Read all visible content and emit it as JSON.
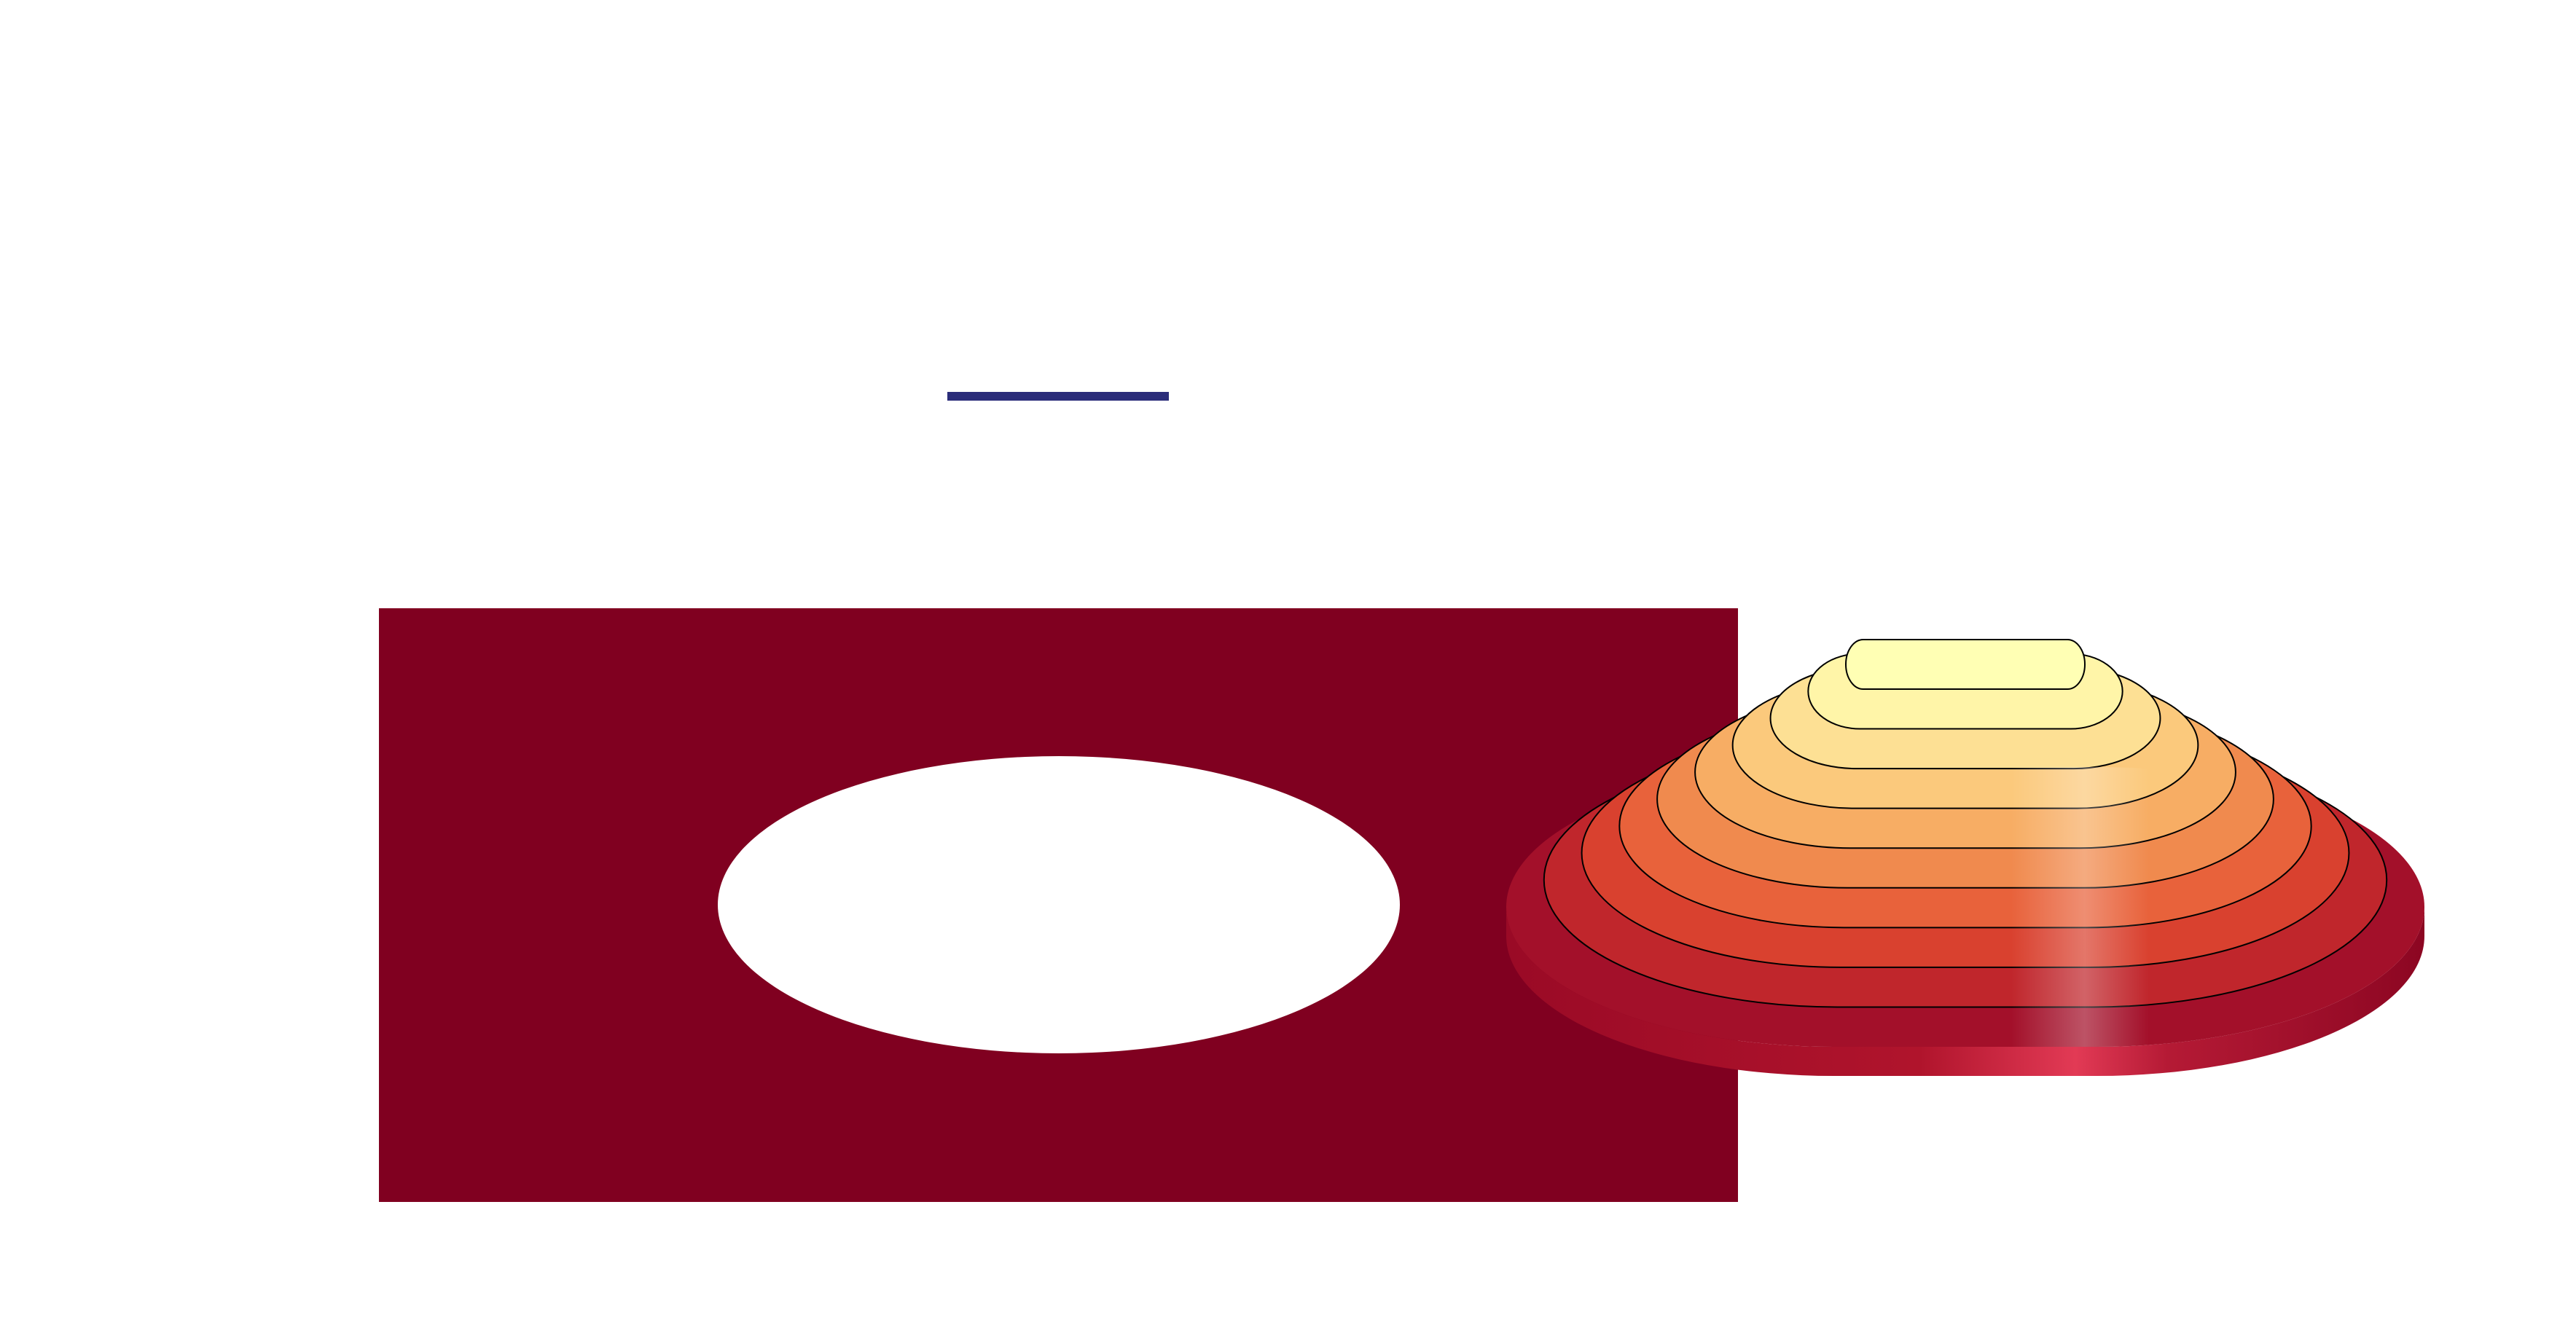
{
  "scene": {
    "background_color": "#ffffff",
    "indicator_line_color": "#2b2d7a",
    "plate_color": "#800020",
    "hole_color": "#ffffff",
    "contour_line_color": "#000000",
    "contour_level_count": 9,
    "surface_colormap": [
      "#a3102a",
      "#c0262c",
      "#d9412f",
      "#e8623b",
      "#f08a4e",
      "#f7ad64",
      "#fbc97c",
      "#fde094",
      "#fff5a8",
      "#ffffb4"
    ]
  }
}
